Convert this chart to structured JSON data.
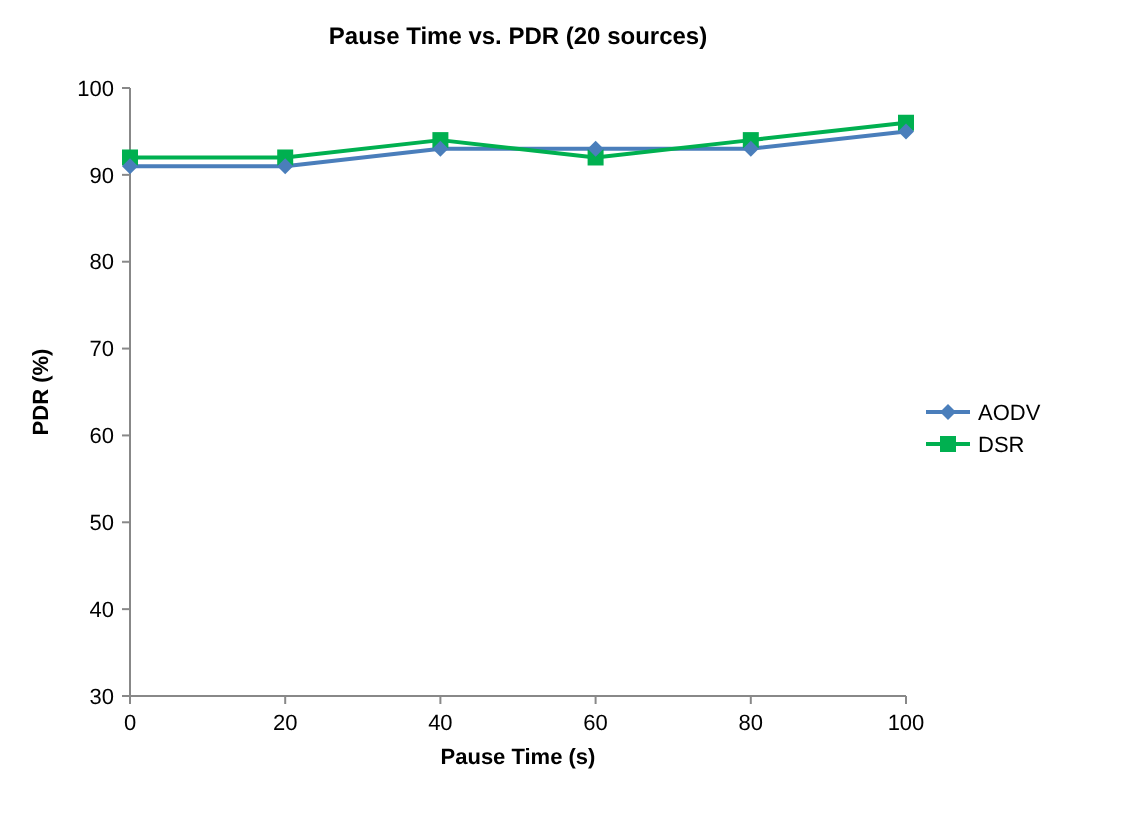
{
  "chart_data": {
    "type": "line",
    "title": "Pause Time vs. PDR (20 sources)",
    "xlabel": "Pause Time (s)",
    "ylabel": "PDR (%)",
    "x": [
      0,
      20,
      40,
      60,
      80,
      100
    ],
    "series": [
      {
        "name": "AODV",
        "color": "#4a7ebb",
        "marker": "diamond",
        "values": [
          91,
          91,
          93,
          93,
          93,
          95
        ]
      },
      {
        "name": "DSR",
        "color": "#00b050",
        "marker": "square",
        "values": [
          92,
          92,
          94,
          92,
          94,
          96
        ]
      }
    ],
    "xlim": [
      0,
      100
    ],
    "xticks": [
      0,
      20,
      40,
      60,
      80,
      100
    ],
    "ylim": [
      30,
      100
    ],
    "yticks": [
      30,
      40,
      50,
      60,
      70,
      80,
      90,
      100
    ],
    "grid": false,
    "legend": "right"
  }
}
